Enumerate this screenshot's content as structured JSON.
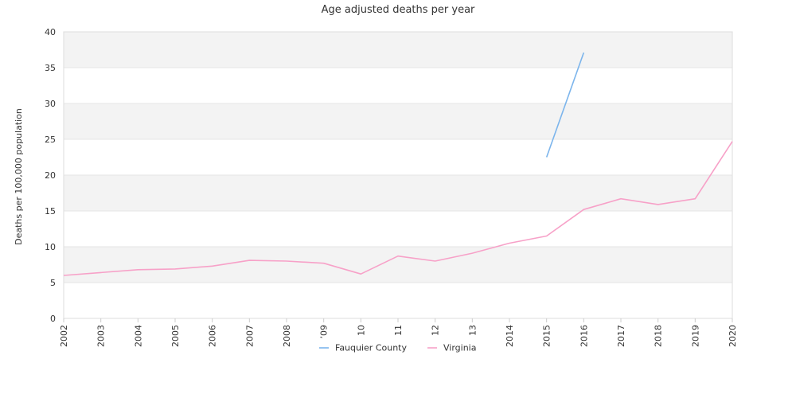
{
  "chart_data": {
    "type": "line",
    "title": "Age adjusted deaths per year",
    "xlabel": "",
    "ylabel": "Deaths per 100,000 population",
    "ylim": [
      0,
      40
    ],
    "yticks": [
      0,
      5,
      10,
      15,
      20,
      25,
      30,
      35,
      40
    ],
    "categories": [
      "2002",
      "2003",
      "2004",
      "2005",
      "2006",
      "2007",
      "2008",
      "2009",
      "2010",
      "2011",
      "2012",
      "2013",
      "2014",
      "2015",
      "2016",
      "2017",
      "2018",
      "2019",
      "2020"
    ],
    "x_tick_labels": [
      "2002",
      "2003",
      "2004",
      "2005",
      "2006",
      "2007",
      "2008",
      "’09",
      "10",
      "11",
      "12",
      "13",
      "2014",
      "2015",
      "2016",
      "2017",
      "2018",
      "2019",
      "2020"
    ],
    "grid": true,
    "legend_position": "bottom",
    "series": [
      {
        "name": "Fauquier County",
        "color": "#7cb5ec",
        "values": [
          null,
          null,
          null,
          null,
          null,
          null,
          null,
          null,
          null,
          null,
          null,
          null,
          null,
          22.5,
          37.1,
          null,
          null,
          null,
          null
        ]
      },
      {
        "name": "Virginia",
        "color": "#f7a1c8",
        "values": [
          6.0,
          6.4,
          6.8,
          6.9,
          7.3,
          8.1,
          8.0,
          7.7,
          6.2,
          8.7,
          8.0,
          9.1,
          10.5,
          11.5,
          15.2,
          16.7,
          15.9,
          16.7,
          24.7
        ]
      }
    ]
  }
}
